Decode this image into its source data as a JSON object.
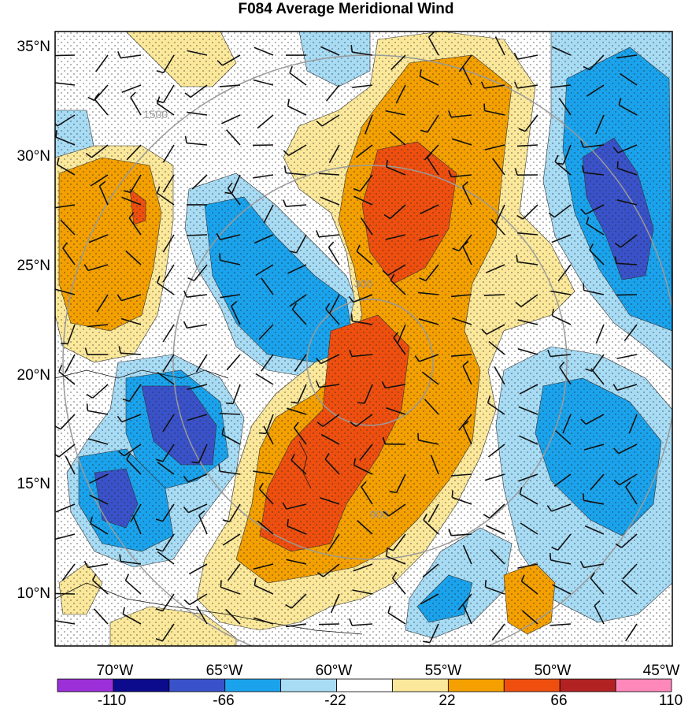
{
  "title": "F084 Average Meridional Wind",
  "lat_ticks": [
    "35°N",
    "30°N",
    "25°N",
    "20°N",
    "15°N",
    "10°N"
  ],
  "lon_ticks": [
    "70°W",
    "65°W",
    "60°W",
    "55°W",
    "50°W",
    "45°W"
  ],
  "colorbar": {
    "labels": [
      "-110",
      "-66",
      "-22",
      "22",
      "66",
      "110"
    ],
    "colors": [
      "#9b30d9",
      "#0b0b8c",
      "#3a52c9",
      "#1aa3ec",
      "#a8dcf5",
      "#ffffff",
      "#fbe89a",
      "#f3a000",
      "#ee4f0f",
      "#b22222",
      "#ff88bb"
    ]
  },
  "range_rings": [
    "300",
    "900",
    "1500"
  ],
  "field_colors": {
    "pos_light": "#fbe89a",
    "pos_mid": "#f3a000",
    "pos_strong": "#ee4f0f",
    "neg_light": "#a8dcf5",
    "neg_mid": "#1aa3ec",
    "neg_strong": "#3a52c9"
  }
}
